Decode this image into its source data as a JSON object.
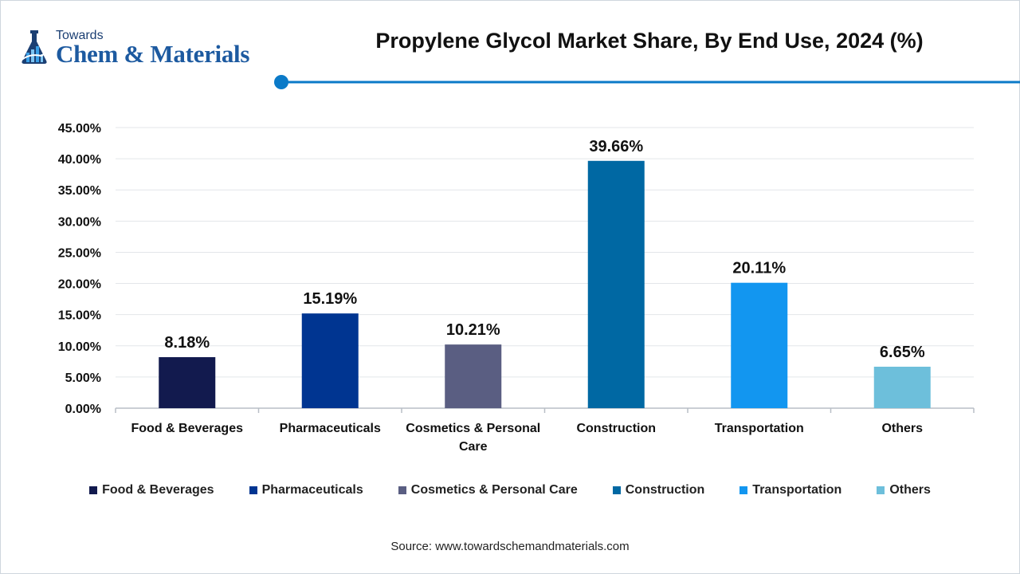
{
  "header": {
    "logo_top": "Towards",
    "logo_main": "Chem & Materials",
    "title": "Propylene Glycol Market Share, By End Use, 2024 (%)"
  },
  "colors": {
    "accent": "#0b7ac8",
    "grid": "#e3e6ea",
    "axis": "#b8bec6"
  },
  "chart_data": {
    "type": "bar",
    "title": "Propylene Glycol Market Share, By End Use, 2024 (%)",
    "categories": [
      "Food & Beverages",
      "Pharmaceuticals",
      "Cosmetics & Personal Care",
      "Construction",
      "Transportation",
      "Others"
    ],
    "values": [
      8.18,
      15.19,
      10.21,
      39.66,
      20.11,
      6.65
    ],
    "value_labels": [
      "8.18%",
      "15.19%",
      "10.21%",
      "39.66%",
      "20.11%",
      "6.65%"
    ],
    "bar_colors": [
      "#121a4e",
      "#003591",
      "#5a5e82",
      "#0068a3",
      "#1296f0",
      "#6dbfdb"
    ],
    "yticks": [
      0,
      5,
      10,
      15,
      20,
      25,
      30,
      35,
      40,
      45
    ],
    "ytick_labels": [
      "0.00%",
      "5.00%",
      "10.00%",
      "15.00%",
      "20.00%",
      "25.00%",
      "30.00%",
      "35.00%",
      "40.00%",
      "45.00%"
    ],
    "ylim": [
      0,
      45
    ],
    "xlabel": "",
    "ylabel": "",
    "grid": true,
    "legend_position": "bottom"
  },
  "footer": {
    "source": "Source: www.towardschemandmaterials.com"
  }
}
